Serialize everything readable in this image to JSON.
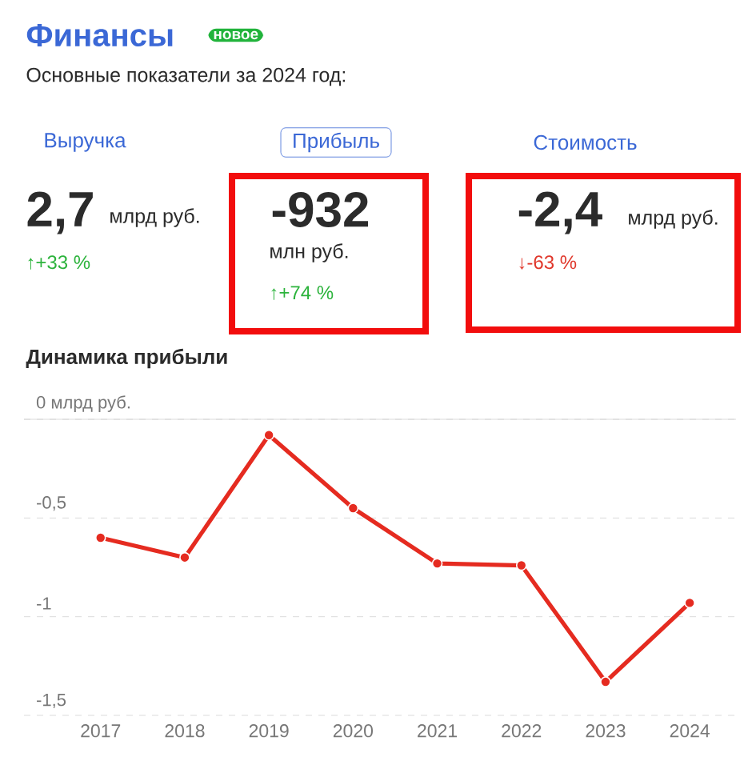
{
  "chart_data": [
    {
      "type": "other",
      "title": "Финансы",
      "subtitle": "Основные показатели за 2024 год:",
      "annotations": [
        "новое",
        "Выручка",
        "2,7",
        "млрд руб.",
        "↑+33 %",
        "Прибыль",
        "-932",
        "млн руб.",
        "↑+74 %",
        "Стоимость",
        "-2,4",
        "млрд руб.",
        "↓-63 %"
      ]
    },
    {
      "type": "line",
      "title": "Динамика прибыли",
      "categories": [
        "2017",
        "2018",
        "2019",
        "2020",
        "2021",
        "2022",
        "2023",
        "2024"
      ],
      "values": [
        -0.6,
        -0.7,
        -0.08,
        -0.45,
        -0.73,
        -0.74,
        -1.33,
        -0.93
      ],
      "color": "#e52b20",
      "ylim": [
        -1.5,
        0
      ],
      "yticks": [
        {
          "value": 0,
          "label": "0 млрд руб."
        },
        {
          "value": -0.5,
          "label": "-0,5"
        },
        {
          "value": -1,
          "label": "-1"
        },
        {
          "value": -1.5,
          "label": "-1,5"
        }
      ],
      "grid": "y",
      "marker": "circle",
      "line_style": "solid"
    }
  ]
}
